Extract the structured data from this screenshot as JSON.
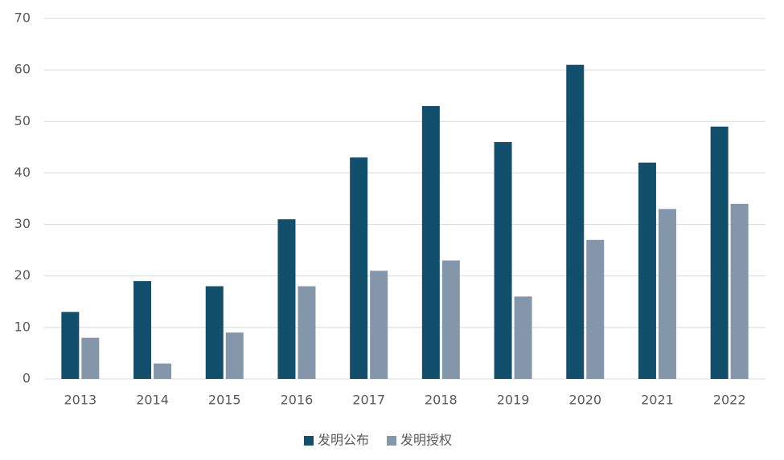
{
  "chart_data": {
    "type": "bar",
    "categories": [
      "2013",
      "2014",
      "2015",
      "2016",
      "2017",
      "2018",
      "2019",
      "2020",
      "2021",
      "2022"
    ],
    "series": [
      {
        "name": "发明公布",
        "color": "#124f6d",
        "values": [
          13,
          19,
          18,
          31,
          43,
          53,
          46,
          61,
          42,
          49
        ]
      },
      {
        "name": "发明授权",
        "color": "#8497aa",
        "values": [
          8,
          3,
          9,
          18,
          21,
          23,
          16,
          27,
          33,
          34
        ]
      }
    ],
    "ylim": [
      0,
      70
    ],
    "yticks": [
      0,
      10,
      20,
      30,
      40,
      50,
      60,
      70
    ],
    "grid": true,
    "legend": "bottom"
  }
}
